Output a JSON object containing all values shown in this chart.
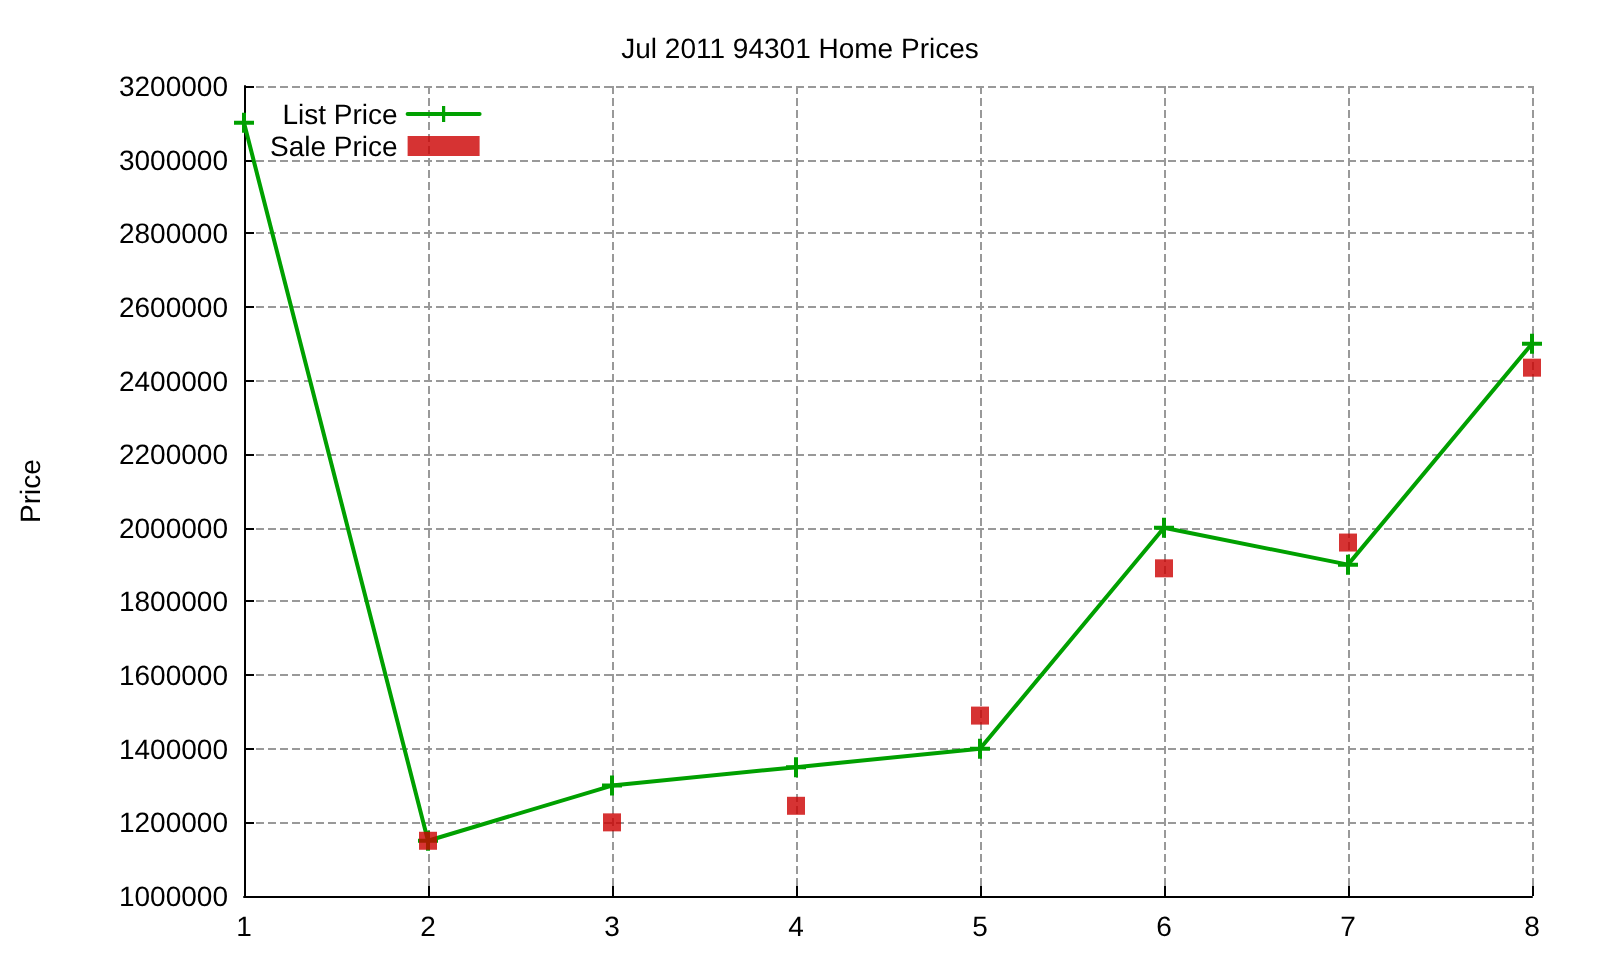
{
  "chart_data": {
    "type": "line",
    "title": "Jul 2011 94301 Home Prices",
    "ylabel": "Price",
    "x": [
      1,
      2,
      3,
      4,
      5,
      6,
      7,
      8
    ],
    "xlim": [
      1,
      8
    ],
    "xticks": [
      1,
      2,
      3,
      4,
      5,
      6,
      7,
      8
    ],
    "ylim": [
      1000000,
      3200000
    ],
    "yticks": [
      1000000,
      1200000,
      1400000,
      1600000,
      1800000,
      2000000,
      2200000,
      2400000,
      2600000,
      2800000,
      3000000,
      3200000
    ],
    "grid": true,
    "legend": "top left",
    "series": [
      {
        "name": "List Price",
        "type": "line",
        "color": "#00a000",
        "marker": "cross",
        "line_style": "solid",
        "values": [
          3100000,
          1150000,
          1300000,
          1350000,
          1400000,
          2000000,
          1900000,
          2500000
        ]
      },
      {
        "name": "Sale Price",
        "type": "scatter",
        "color": "#cc0000",
        "marker": "square",
        "values": [
          null,
          1150000,
          1200000,
          1245000,
          1490000,
          1890000,
          1960000,
          2435000
        ]
      }
    ]
  }
}
